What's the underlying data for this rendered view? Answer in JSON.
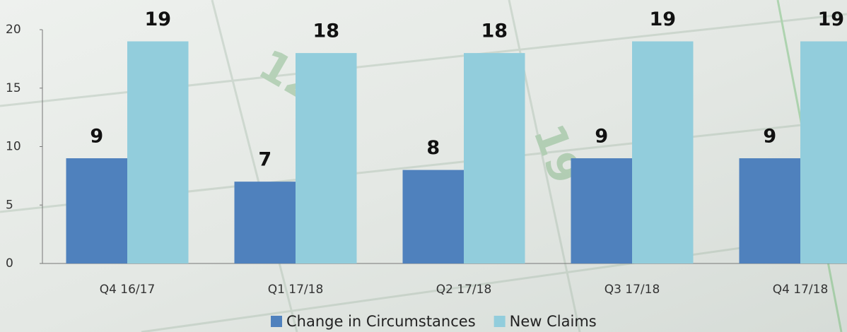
{
  "chart_data": {
    "type": "bar",
    "categories": [
      "Q4 16/17",
      "Q1 17/18",
      "Q2 17/18",
      "Q3 17/18",
      "Q4 17/18"
    ],
    "series": [
      {
        "name": "Change in Circumstances",
        "color": "#4f81bd",
        "values": [
          9,
          7,
          8,
          9,
          9
        ]
      },
      {
        "name": "New Claims",
        "color": "#92cddc",
        "values": [
          19,
          18,
          18,
          19,
          19
        ]
      }
    ],
    "ylim": [
      0,
      20
    ],
    "yticks": [
      0,
      5,
      10,
      15,
      20
    ],
    "grid": false
  }
}
